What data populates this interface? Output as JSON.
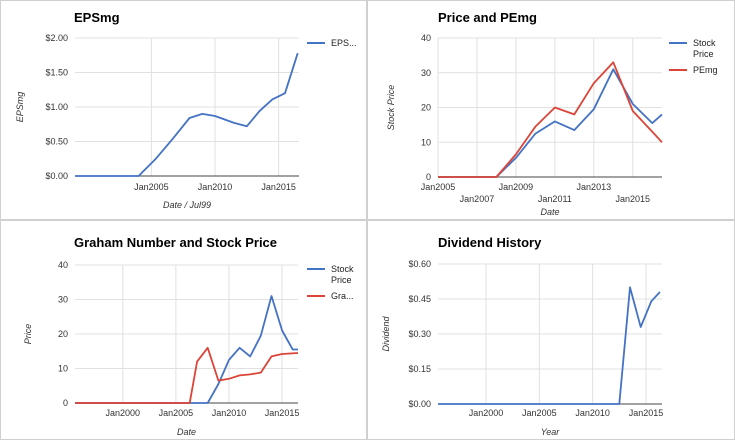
{
  "chart_data": [
    {
      "id": "eps",
      "type": "line",
      "title": "EPSmg",
      "xlabel": "Date / Jul99",
      "ylabel": "EPSmg",
      "xlim": [
        1999,
        2016.6
      ],
      "ylim": [
        0,
        2
      ],
      "y_ticks": [
        "$0.00",
        "$0.50",
        "$1.00",
        "$1.50",
        "$2.00"
      ],
      "y_tick_values": [
        0,
        0.5,
        1,
        1.5,
        2
      ],
      "x_ticks": [
        {
          "label": "Jan2005",
          "value": 2005
        },
        {
          "label": "Jan2010",
          "value": 2010
        },
        {
          "label": "Jan2015",
          "value": 2015
        }
      ],
      "legend": "right",
      "grid": true,
      "series": [
        {
          "name": "EPS...",
          "color": "#4472c4",
          "x": [
            1999,
            2004,
            2005.3,
            2006.6,
            2008,
            2009,
            2010,
            2011.5,
            2012.5,
            2013.5,
            2014.5,
            2015.5,
            2016.5
          ],
          "y": [
            0,
            0,
            0.24,
            0.52,
            0.84,
            0.9,
            0.87,
            0.77,
            0.72,
            0.94,
            1.11,
            1.2,
            1.78
          ]
        }
      ]
    },
    {
      "id": "price_pe",
      "type": "line",
      "title": "Price and PEmg",
      "xlabel": "Date",
      "ylabel": "Stock Price",
      "xlim": [
        2005,
        2016.5
      ],
      "ylim": [
        0,
        40
      ],
      "y_ticks": [
        "0",
        "10",
        "20",
        "30",
        "40"
      ],
      "y_tick_values": [
        0,
        10,
        20,
        30,
        40
      ],
      "x_ticks": [
        {
          "label": "Jan2005",
          "value": 2005,
          "row": 0
        },
        {
          "label": "Jan2007",
          "value": 2007,
          "row": 1
        },
        {
          "label": "Jan2009",
          "value": 2009,
          "row": 0
        },
        {
          "label": "Jan2011",
          "value": 2011,
          "row": 1
        },
        {
          "label": "Jan2013",
          "value": 2013,
          "row": 0
        },
        {
          "label": "Jan2015",
          "value": 2015,
          "row": 1
        }
      ],
      "legend": "right",
      "grid": true,
      "series": [
        {
          "name": "Stock Price",
          "color": "#4472c4",
          "x": [
            2005,
            2008,
            2009,
            2010,
            2011,
            2012,
            2013,
            2014,
            2015,
            2016,
            2016.5
          ],
          "y": [
            0,
            0,
            5.5,
            12.5,
            16.0,
            13.5,
            19.5,
            31.0,
            21.0,
            15.5,
            18.0
          ]
        },
        {
          "name": "PEmg",
          "color": "#db4437",
          "x": [
            2005,
            2008,
            2009,
            2010,
            2011,
            2012,
            2013,
            2014,
            2015,
            2016,
            2016.5
          ],
          "y": [
            0,
            0,
            6.5,
            14.5,
            20.0,
            18.0,
            27.0,
            33.0,
            19.0,
            13.0,
            10.0
          ]
        }
      ]
    },
    {
      "id": "graham",
      "type": "line",
      "title": "Graham Number and Stock Price",
      "xlabel": "Date",
      "ylabel": "Price",
      "xlim": [
        1995.5,
        2016.5
      ],
      "ylim": [
        0,
        40
      ],
      "y_ticks": [
        "0",
        "10",
        "20",
        "30",
        "40"
      ],
      "y_tick_values": [
        0,
        10,
        20,
        30,
        40
      ],
      "x_ticks": [
        {
          "label": "Jan2000",
          "value": 2000
        },
        {
          "label": "Jan2005",
          "value": 2005
        },
        {
          "label": "Jan2010",
          "value": 2010
        },
        {
          "label": "Jan2015",
          "value": 2015
        }
      ],
      "legend": "right",
      "grid": true,
      "series": [
        {
          "name": "Stock Price",
          "color": "#4472c4",
          "x": [
            1995.5,
            2008,
            2009,
            2010,
            2011,
            2012,
            2013,
            2014,
            2015,
            2016,
            2016.5
          ],
          "y": [
            0,
            0,
            5.5,
            12.5,
            16.0,
            13.5,
            19.5,
            31.0,
            21.0,
            15.5,
            15.5
          ]
        },
        {
          "name": "Gra...",
          "color": "#db4437",
          "x": [
            1995.5,
            2006.3,
            2007,
            2008,
            2009,
            2010,
            2011,
            2012,
            2013,
            2014,
            2015,
            2016.5
          ],
          "y": [
            0,
            0,
            12,
            16,
            6.5,
            7,
            8,
            8.3,
            8.8,
            13.5,
            14.2,
            14.5
          ]
        }
      ]
    },
    {
      "id": "dividend",
      "type": "line",
      "title": "Dividend History",
      "xlabel": "Year",
      "ylabel": "Dividend",
      "xlim": [
        1995.5,
        2016.5
      ],
      "ylim": [
        0,
        0.6
      ],
      "y_ticks": [
        "$0.00",
        "$0.15",
        "$0.30",
        "$0.45",
        "$0.60"
      ],
      "y_tick_values": [
        0,
        0.15,
        0.3,
        0.45,
        0.6
      ],
      "x_ticks": [
        {
          "label": "Jan2000",
          "value": 2000
        },
        {
          "label": "Jan2005",
          "value": 2005
        },
        {
          "label": "Jan2010",
          "value": 2010
        },
        {
          "label": "Jan2015",
          "value": 2015
        }
      ],
      "legend": "none",
      "grid": true,
      "series": [
        {
          "name": "",
          "color": "#4472c4",
          "x": [
            1995.5,
            2012.5,
            2013.5,
            2014.5,
            2015.5,
            2016.3
          ],
          "y": [
            0,
            0,
            0.5,
            0.33,
            0.44,
            0.48
          ]
        }
      ]
    }
  ]
}
